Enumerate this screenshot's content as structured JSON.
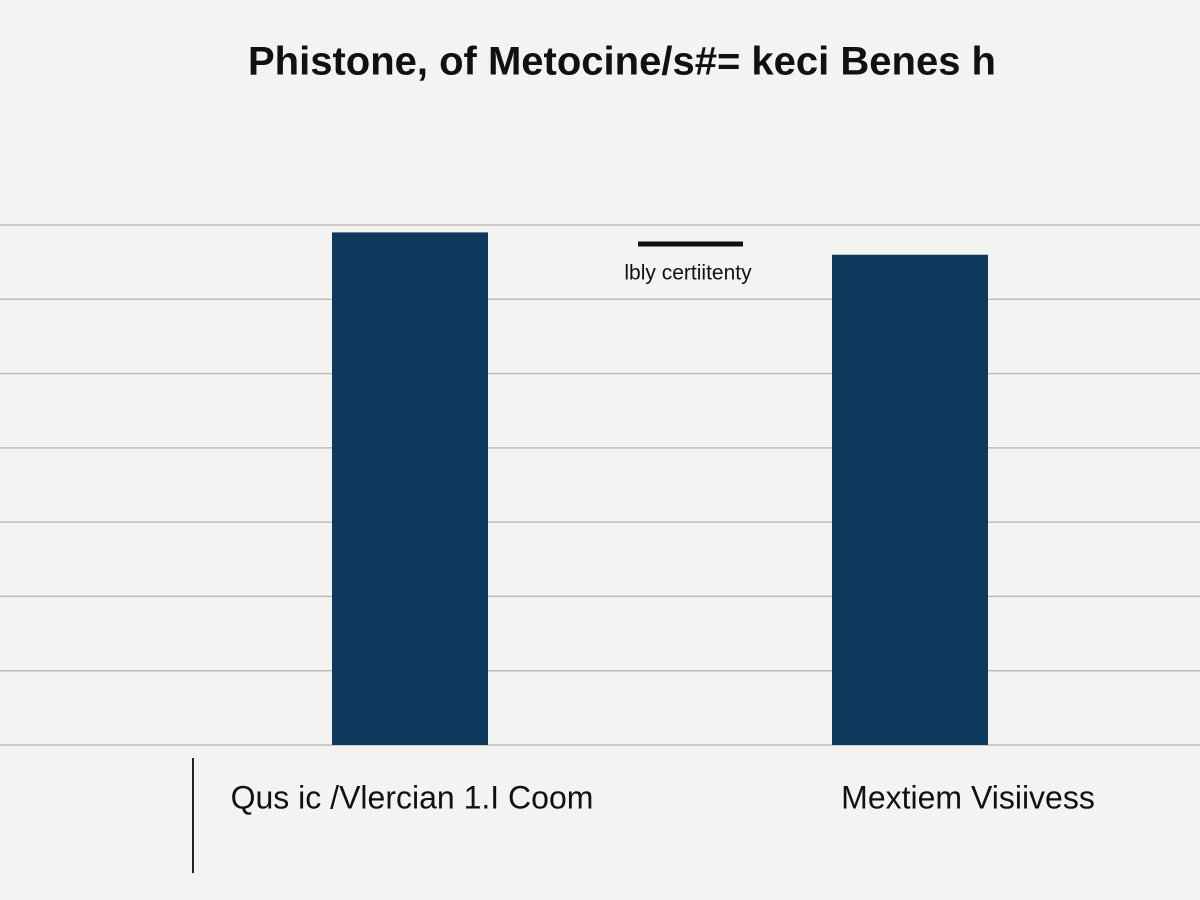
{
  "chart_data": {
    "type": "bar",
    "title": "Phistone, of Metocine/s#= keci Benes h",
    "categories": [
      "Qus ic /Vlercian 1.I Coom",
      "Mextiem Visiivess"
    ],
    "values": [
      6.9,
      6.6
    ],
    "color": "#0f3a5e",
    "ylim": [
      0,
      7
    ],
    "yticks": [
      0,
      1,
      2,
      3,
      4,
      5,
      6,
      7
    ],
    "grid": true,
    "tick_labels": false,
    "annotation": "lbly certiitenty"
  }
}
